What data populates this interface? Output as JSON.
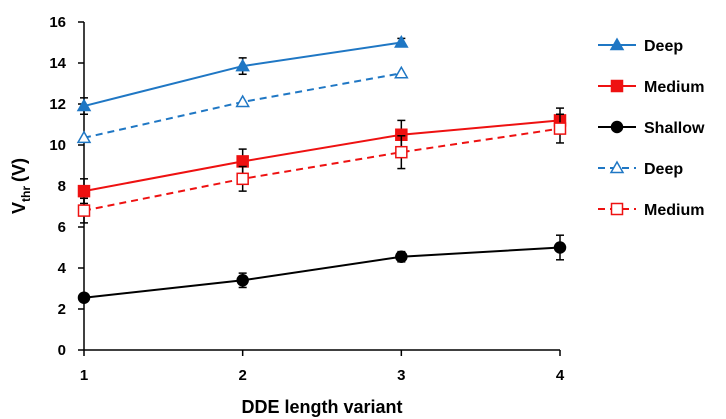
{
  "chart_data": {
    "type": "line",
    "xlabel": "DDE length variant",
    "ylabel_main": "V",
    "ylabel_sub": "thr",
    "ylabel_unit": "(V)",
    "xlim": [
      1,
      4
    ],
    "ylim": [
      0,
      16
    ],
    "x_ticks": [
      "1",
      "2",
      "3",
      "4"
    ],
    "y_ticks": [
      "0",
      "2",
      "4",
      "6",
      "8",
      "10",
      "12",
      "14",
      "16"
    ],
    "grid": false,
    "legend_position": "right",
    "series": [
      {
        "name": "Deep",
        "color": "#1f77c4",
        "marker": "triangle",
        "filled": true,
        "dashed": false,
        "x": [
          1,
          2,
          3
        ],
        "y": [
          11.9,
          13.85,
          15.0
        ],
        "err": [
          0.4,
          0.4,
          0.2
        ]
      },
      {
        "name": "Medium",
        "color": "#ee1111",
        "marker": "square",
        "filled": true,
        "dashed": false,
        "x": [
          1,
          2,
          3,
          4
        ],
        "y": [
          7.75,
          9.2,
          10.5,
          11.2
        ],
        "err": [
          0.6,
          0.6,
          0.7,
          0.6
        ]
      },
      {
        "name": "Shallow",
        "color": "#000000",
        "marker": "circle",
        "filled": true,
        "dashed": false,
        "x": [
          1,
          2,
          3,
          4
        ],
        "y": [
          2.55,
          3.4,
          4.55,
          5.0
        ],
        "err": [
          0.2,
          0.35,
          0.25,
          0.6
        ]
      },
      {
        "name": "Deep",
        "color": "#1f77c4",
        "marker": "triangle",
        "filled": false,
        "dashed": true,
        "x": [
          1,
          2,
          3
        ],
        "y": [
          10.35,
          12.1,
          13.5
        ],
        "err": [
          0,
          0,
          0
        ]
      },
      {
        "name": "Medium",
        "color": "#ee1111",
        "marker": "square",
        "filled": false,
        "dashed": true,
        "x": [
          1,
          2,
          3,
          4
        ],
        "y": [
          6.8,
          8.35,
          9.65,
          10.8
        ],
        "err": [
          0.6,
          0.6,
          0.8,
          0.7
        ]
      }
    ]
  }
}
